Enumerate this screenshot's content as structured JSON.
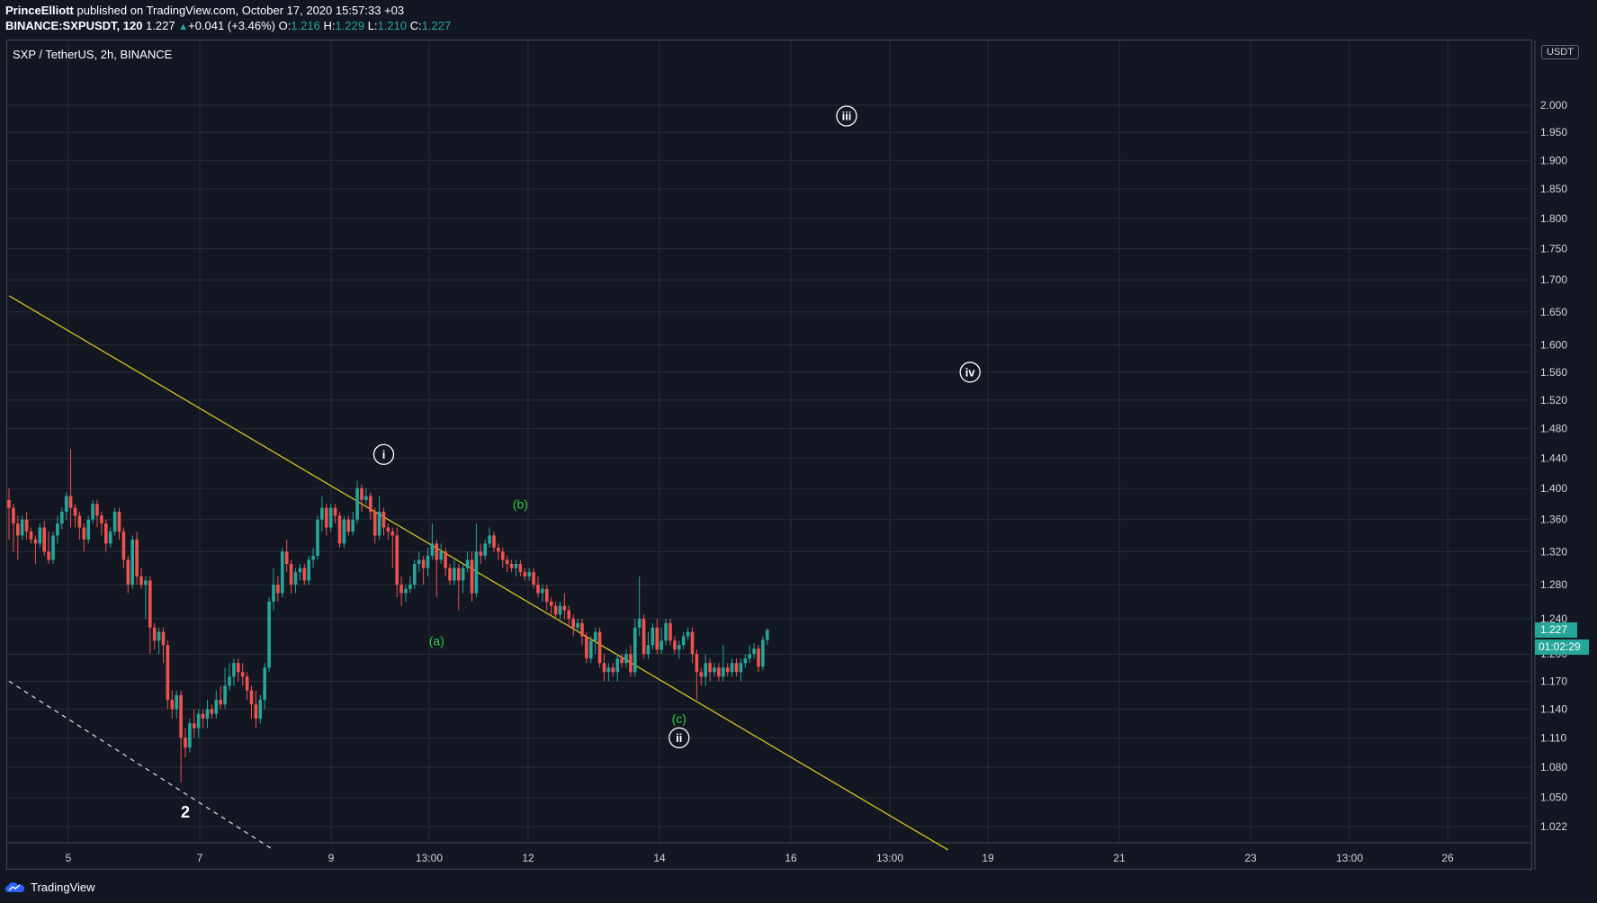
{
  "header": {
    "author": "PrinceElliott",
    "published_text": "published on TradingView.com, October 17, 2020 15:57:33 +03",
    "symbol": "BINANCE:SXPUSDT, 120",
    "last": "1.227",
    "arrow": "▲",
    "change": "+0.041 (+3.46%)",
    "o_label": "O:",
    "o_value": "1.216",
    "h_label": "H:",
    "h_value": "1.229",
    "l_label": "L:",
    "l_value": "1.210",
    "c_label": "C:",
    "c_value": "1.227"
  },
  "chart_title": "SXP / TetherUS, 2h, BINANCE",
  "currency": "USDT",
  "current_price_label": "1.227",
  "countdown": "01:02:29",
  "footer": {
    "brand": "TradingView"
  },
  "colors": {
    "background": "#131722",
    "grid": "#2a2e39",
    "up": "#26a69a",
    "down": "#ef5350",
    "trendline": "#d4c51f",
    "wave_green": "#2ecc40",
    "text": "#d1d4dc"
  },
  "chart_data": {
    "type": "candlestick",
    "title": "SXP / TetherUS, 2h, BINANCE",
    "y_axis": {
      "unit": "USDT",
      "scale": "log",
      "range": [
        1.0,
        2.05
      ],
      "ticks": [
        "2.000",
        "1.950",
        "1.900",
        "1.850",
        "1.800",
        "1.750",
        "1.700",
        "1.650",
        "1.600",
        "1.560",
        "1.520",
        "1.480",
        "1.440",
        "1.400",
        "1.360",
        "1.320",
        "1.280",
        "1.240",
        "1.200",
        "1.170",
        "1.140",
        "1.110",
        "1.080",
        "1.050",
        "1.022"
      ]
    },
    "x_axis": {
      "ticks": [
        "5",
        "7",
        "9",
        "13:00",
        "12",
        "14",
        "16",
        "13:00",
        "19",
        "21",
        "23",
        "13:00",
        "26"
      ]
    },
    "candles": [
      [
        0,
        1.385,
        1.375,
        1.4,
        1.335
      ],
      [
        1,
        1.375,
        1.355,
        1.38,
        1.32
      ],
      [
        2,
        1.355,
        1.34,
        1.365,
        1.31
      ],
      [
        3,
        1.34,
        1.36,
        1.365,
        1.335
      ],
      [
        4,
        1.36,
        1.345,
        1.37,
        1.335
      ],
      [
        5,
        1.345,
        1.335,
        1.35,
        1.33
      ],
      [
        6,
        1.335,
        1.33,
        1.34,
        1.305
      ],
      [
        7,
        1.33,
        1.35,
        1.355,
        1.325
      ],
      [
        8,
        1.35,
        1.32,
        1.358,
        1.315
      ],
      [
        9,
        1.32,
        1.31,
        1.345,
        1.305
      ],
      [
        10,
        1.31,
        1.34,
        1.345,
        1.305
      ],
      [
        11,
        1.34,
        1.355,
        1.365,
        1.33
      ],
      [
        12,
        1.355,
        1.37,
        1.375,
        1.348
      ],
      [
        13,
        1.37,
        1.39,
        1.395,
        1.36
      ],
      [
        14,
        1.39,
        1.375,
        1.452,
        1.35
      ],
      [
        15,
        1.375,
        1.365,
        1.38,
        1.35
      ],
      [
        16,
        1.365,
        1.35,
        1.37,
        1.335
      ],
      [
        17,
        1.35,
        1.335,
        1.355,
        1.32
      ],
      [
        18,
        1.335,
        1.36,
        1.365,
        1.33
      ],
      [
        19,
        1.36,
        1.38,
        1.385,
        1.355
      ],
      [
        20,
        1.38,
        1.365,
        1.385,
        1.35
      ],
      [
        21,
        1.365,
        1.355,
        1.37,
        1.34
      ],
      [
        22,
        1.355,
        1.33,
        1.36,
        1.32
      ],
      [
        23,
        1.33,
        1.345,
        1.35,
        1.325
      ],
      [
        24,
        1.345,
        1.37,
        1.375,
        1.34
      ],
      [
        25,
        1.37,
        1.345,
        1.375,
        1.335
      ],
      [
        26,
        1.345,
        1.31,
        1.35,
        1.3
      ],
      [
        27,
        1.31,
        1.28,
        1.315,
        1.27
      ],
      [
        28,
        1.28,
        1.335,
        1.34,
        1.275
      ],
      [
        29,
        1.335,
        1.29,
        1.345,
        1.28
      ],
      [
        30,
        1.29,
        1.28,
        1.3,
        1.275
      ],
      [
        31,
        1.28,
        1.285,
        1.29,
        1.24
      ],
      [
        32,
        1.285,
        1.23,
        1.29,
        1.2
      ],
      [
        33,
        1.23,
        1.215,
        1.235,
        1.205
      ],
      [
        34,
        1.215,
        1.225,
        1.23,
        1.2
      ],
      [
        35,
        1.225,
        1.21,
        1.23,
        1.19
      ],
      [
        36,
        1.21,
        1.15,
        1.215,
        1.14
      ],
      [
        37,
        1.15,
        1.14,
        1.16,
        1.13
      ],
      [
        38,
        1.14,
        1.155,
        1.16,
        1.13
      ],
      [
        39,
        1.155,
        1.11,
        1.16,
        1.065
      ],
      [
        40,
        1.11,
        1.1,
        1.12,
        1.09
      ],
      [
        41,
        1.1,
        1.125,
        1.13,
        1.095
      ],
      [
        42,
        1.125,
        1.12,
        1.14,
        1.11
      ],
      [
        43,
        1.12,
        1.135,
        1.14,
        1.11
      ],
      [
        44,
        1.135,
        1.13,
        1.14,
        1.12
      ],
      [
        45,
        1.13,
        1.14,
        1.15,
        1.12
      ],
      [
        46,
        1.14,
        1.135,
        1.145,
        1.13
      ],
      [
        47,
        1.135,
        1.15,
        1.16,
        1.13
      ],
      [
        48,
        1.15,
        1.145,
        1.165,
        1.14
      ],
      [
        49,
        1.145,
        1.165,
        1.185,
        1.14
      ],
      [
        50,
        1.165,
        1.175,
        1.19,
        1.16
      ],
      [
        51,
        1.175,
        1.19,
        1.195,
        1.165
      ],
      [
        52,
        1.19,
        1.18,
        1.195,
        1.17
      ],
      [
        53,
        1.18,
        1.175,
        1.19,
        1.165
      ],
      [
        54,
        1.175,
        1.16,
        1.18,
        1.15
      ],
      [
        55,
        1.16,
        1.145,
        1.165,
        1.13
      ],
      [
        56,
        1.145,
        1.13,
        1.16,
        1.12
      ],
      [
        57,
        1.13,
        1.15,
        1.155,
        1.125
      ],
      [
        58,
        1.15,
        1.185,
        1.19,
        1.14
      ],
      [
        59,
        1.185,
        1.26,
        1.265,
        1.18
      ],
      [
        60,
        1.26,
        1.28,
        1.3,
        1.25
      ],
      [
        61,
        1.28,
        1.27,
        1.29,
        1.26
      ],
      [
        62,
        1.27,
        1.32,
        1.325,
        1.265
      ],
      [
        63,
        1.32,
        1.305,
        1.335,
        1.295
      ],
      [
        64,
        1.305,
        1.28,
        1.31,
        1.27
      ],
      [
        65,
        1.28,
        1.295,
        1.3,
        1.27
      ],
      [
        66,
        1.295,
        1.3,
        1.305,
        1.285
      ],
      [
        67,
        1.3,
        1.285,
        1.305,
        1.28
      ],
      [
        68,
        1.285,
        1.31,
        1.315,
        1.28
      ],
      [
        69,
        1.31,
        1.315,
        1.325,
        1.3
      ],
      [
        70,
        1.315,
        1.36,
        1.365,
        1.31
      ],
      [
        71,
        1.36,
        1.375,
        1.39,
        1.345
      ],
      [
        72,
        1.375,
        1.35,
        1.38,
        1.34
      ],
      [
        73,
        1.35,
        1.375,
        1.38,
        1.345
      ],
      [
        74,
        1.375,
        1.365,
        1.38,
        1.355
      ],
      [
        75,
        1.365,
        1.33,
        1.37,
        1.325
      ],
      [
        76,
        1.33,
        1.36,
        1.365,
        1.325
      ],
      [
        77,
        1.36,
        1.345,
        1.365,
        1.34
      ],
      [
        78,
        1.345,
        1.36,
        1.37,
        1.34
      ],
      [
        79,
        1.36,
        1.4,
        1.41,
        1.355
      ],
      [
        80,
        1.4,
        1.385,
        1.405,
        1.37
      ],
      [
        81,
        1.385,
        1.39,
        1.4,
        1.38
      ],
      [
        82,
        1.39,
        1.37,
        1.395,
        1.36
      ],
      [
        83,
        1.37,
        1.34,
        1.375,
        1.33
      ],
      [
        84,
        1.34,
        1.37,
        1.39,
        1.335
      ],
      [
        85,
        1.37,
        1.35,
        1.375,
        1.34
      ],
      [
        86,
        1.35,
        1.345,
        1.355,
        1.335
      ],
      [
        87,
        1.345,
        1.34,
        1.35,
        1.3
      ],
      [
        88,
        1.34,
        1.28,
        1.35,
        1.265
      ],
      [
        89,
        1.28,
        1.27,
        1.29,
        1.255
      ],
      [
        90,
        1.27,
        1.275,
        1.28,
        1.26
      ],
      [
        91,
        1.275,
        1.28,
        1.29,
        1.27
      ],
      [
        92,
        1.28,
        1.305,
        1.31,
        1.275
      ],
      [
        93,
        1.305,
        1.31,
        1.32,
        1.295
      ],
      [
        94,
        1.31,
        1.3,
        1.315,
        1.28
      ],
      [
        95,
        1.3,
        1.315,
        1.325,
        1.29
      ],
      [
        96,
        1.315,
        1.33,
        1.355,
        1.31
      ],
      [
        97,
        1.33,
        1.31,
        1.335,
        1.265
      ],
      [
        98,
        1.31,
        1.32,
        1.33,
        1.305
      ],
      [
        99,
        1.32,
        1.3,
        1.325,
        1.29
      ],
      [
        100,
        1.3,
        1.285,
        1.305,
        1.28
      ],
      [
        101,
        1.285,
        1.3,
        1.31,
        1.28
      ],
      [
        102,
        1.3,
        1.285,
        1.305,
        1.25
      ],
      [
        103,
        1.285,
        1.3,
        1.305,
        1.27
      ],
      [
        104,
        1.3,
        1.31,
        1.32,
        1.295
      ],
      [
        105,
        1.31,
        1.27,
        1.32,
        1.26
      ],
      [
        106,
        1.27,
        1.32,
        1.355,
        1.265
      ],
      [
        107,
        1.32,
        1.315,
        1.33,
        1.305
      ],
      [
        108,
        1.315,
        1.33,
        1.335,
        1.31
      ],
      [
        109,
        1.33,
        1.34,
        1.35,
        1.325
      ],
      [
        110,
        1.34,
        1.325,
        1.345,
        1.32
      ],
      [
        111,
        1.325,
        1.32,
        1.33,
        1.31
      ],
      [
        112,
        1.32,
        1.31,
        1.325,
        1.3
      ],
      [
        113,
        1.31,
        1.305,
        1.315,
        1.295
      ],
      [
        114,
        1.305,
        1.3,
        1.31,
        1.295
      ],
      [
        115,
        1.3,
        1.305,
        1.31,
        1.29
      ],
      [
        116,
        1.305,
        1.295,
        1.31,
        1.29
      ],
      [
        117,
        1.295,
        1.29,
        1.3,
        1.285
      ],
      [
        118,
        1.29,
        1.295,
        1.3,
        1.285
      ],
      [
        119,
        1.295,
        1.28,
        1.3,
        1.275
      ],
      [
        120,
        1.28,
        1.27,
        1.29,
        1.265
      ],
      [
        121,
        1.27,
        1.275,
        1.28,
        1.26
      ],
      [
        122,
        1.275,
        1.26,
        1.28,
        1.25
      ],
      [
        123,
        1.26,
        1.255,
        1.265,
        1.245
      ],
      [
        124,
        1.255,
        1.245,
        1.26,
        1.24
      ],
      [
        125,
        1.245,
        1.255,
        1.26,
        1.24
      ],
      [
        126,
        1.255,
        1.25,
        1.27,
        1.24
      ],
      [
        127,
        1.25,
        1.24,
        1.255,
        1.23
      ],
      [
        128,
        1.24,
        1.23,
        1.245,
        1.22
      ],
      [
        129,
        1.23,
        1.235,
        1.24,
        1.225
      ],
      [
        130,
        1.235,
        1.22,
        1.24,
        1.21
      ],
      [
        131,
        1.22,
        1.195,
        1.225,
        1.19
      ],
      [
        132,
        1.195,
        1.215,
        1.22,
        1.19
      ],
      [
        133,
        1.215,
        1.225,
        1.23,
        1.2
      ],
      [
        134,
        1.225,
        1.19,
        1.23,
        1.185
      ],
      [
        135,
        1.19,
        1.18,
        1.2,
        1.17
      ],
      [
        136,
        1.18,
        1.185,
        1.19,
        1.17
      ],
      [
        137,
        1.185,
        1.18,
        1.19,
        1.175
      ],
      [
        138,
        1.18,
        1.195,
        1.2,
        1.17
      ],
      [
        139,
        1.195,
        1.19,
        1.2,
        1.185
      ],
      [
        140,
        1.19,
        1.2,
        1.205,
        1.185
      ],
      [
        141,
        1.2,
        1.18,
        1.21,
        1.175
      ],
      [
        142,
        1.18,
        1.23,
        1.24,
        1.175
      ],
      [
        143,
        1.23,
        1.24,
        1.29,
        1.22
      ],
      [
        144,
        1.24,
        1.2,
        1.245,
        1.195
      ],
      [
        145,
        1.2,
        1.21,
        1.225,
        1.195
      ],
      [
        146,
        1.21,
        1.23,
        1.235,
        1.205
      ],
      [
        147,
        1.23,
        1.205,
        1.24,
        1.2
      ],
      [
        148,
        1.205,
        1.215,
        1.23,
        1.2
      ],
      [
        149,
        1.215,
        1.235,
        1.24,
        1.21
      ],
      [
        150,
        1.235,
        1.215,
        1.24,
        1.21
      ],
      [
        151,
        1.215,
        1.205,
        1.22,
        1.2
      ],
      [
        152,
        1.205,
        1.21,
        1.215,
        1.195
      ],
      [
        153,
        1.21,
        1.22,
        1.225,
        1.205
      ],
      [
        154,
        1.22,
        1.225,
        1.23,
        1.215
      ],
      [
        155,
        1.225,
        1.2,
        1.23,
        1.19
      ],
      [
        156,
        1.2,
        1.18,
        1.205,
        1.15
      ],
      [
        157,
        1.18,
        1.175,
        1.185,
        1.165
      ],
      [
        158,
        1.175,
        1.19,
        1.2,
        1.165
      ],
      [
        159,
        1.19,
        1.18,
        1.195,
        1.17
      ],
      [
        160,
        1.18,
        1.185,
        1.19,
        1.175
      ],
      [
        161,
        1.185,
        1.175,
        1.19,
        1.17
      ],
      [
        162,
        1.175,
        1.185,
        1.21,
        1.17
      ],
      [
        163,
        1.185,
        1.18,
        1.19,
        1.175
      ],
      [
        164,
        1.18,
        1.19,
        1.195,
        1.175
      ],
      [
        165,
        1.19,
        1.18,
        1.195,
        1.175
      ],
      [
        166,
        1.18,
        1.19,
        1.195,
        1.17
      ],
      [
        167,
        1.19,
        1.195,
        1.2,
        1.185
      ],
      [
        168,
        1.195,
        1.2,
        1.21,
        1.19
      ],
      [
        169,
        1.2,
        1.206,
        1.212,
        1.195
      ],
      [
        170,
        1.206,
        1.186,
        1.21,
        1.18
      ],
      [
        171,
        1.186,
        1.216,
        1.22,
        1.182
      ],
      [
        172,
        1.216,
        1.227,
        1.229,
        1.21
      ]
    ],
    "trendlines": [
      {
        "style": "solid",
        "color": "#d4c51f",
        "points": [
          [
            0,
            1.675
          ],
          [
            213,
            1.0
          ]
        ]
      },
      {
        "style": "dashed",
        "color": "#d1d4dc",
        "points": [
          [
            0,
            1.17
          ],
          [
            60,
            1.0
          ]
        ]
      }
    ],
    "annotations": [
      {
        "text": "i",
        "style": "circled",
        "index": 85,
        "price": 1.445
      },
      {
        "text": "ii",
        "style": "circled",
        "index": 152,
        "price": 1.11
      },
      {
        "text": "iii",
        "style": "circled",
        "index": 190,
        "price": 1.98
      },
      {
        "text": "iv",
        "style": "circled",
        "index": 218,
        "price": 1.56
      },
      {
        "text": "(a)",
        "style": "green",
        "index": 97,
        "price": 1.215
      },
      {
        "text": "(b)",
        "style": "green",
        "index": 116,
        "price": 1.38
      },
      {
        "text": "(c)",
        "style": "green",
        "index": 152,
        "price": 1.13
      },
      {
        "text": "2",
        "style": "white",
        "index": 40,
        "price": 1.035
      }
    ]
  }
}
